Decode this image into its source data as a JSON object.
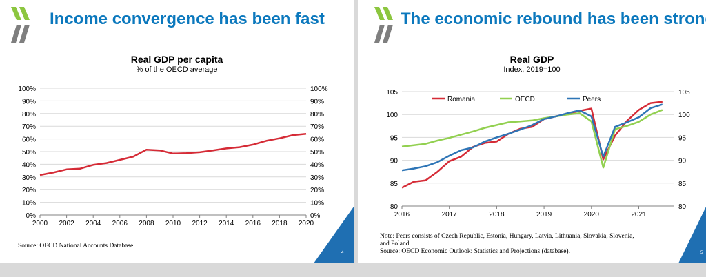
{
  "left_slide": {
    "title": "Income convergence has been fast",
    "page_number": "4",
    "source": "Source: OECD National Accounts Database."
  },
  "right_slide": {
    "title": "The economic rebound has been strong",
    "page_number": "5",
    "note_line1": "Note: Peers consists of Czech Republic, Estonia, Hungary, Latvia, Lithuania, Slovakia, Slovenia,",
    "note_line2": "and Poland.",
    "source": "Source: OECD Economic Outlook: Statistics and Projections (database)."
  },
  "colors": {
    "title_blue": "#0b78bd",
    "logo_green": "#8cc63f",
    "logo_gray": "#7f7f7f",
    "romania_red": "#d52b36",
    "oecd_green": "#92d050",
    "peers_blue": "#2e75b6",
    "corner_blue": "#1f6fb2"
  },
  "chart_data": [
    {
      "type": "line",
      "title": "Real GDP per capita",
      "subtitle": "% of the OECD average",
      "xlim": [
        2000,
        2020
      ],
      "ylim": [
        0,
        100
      ],
      "x_ticks": [
        "2000",
        "2002",
        "2004",
        "2006",
        "2008",
        "2010",
        "2012",
        "2014",
        "2016",
        "2018",
        "2020"
      ],
      "y_ticks": [
        "0%",
        "10%",
        "20%",
        "30%",
        "40%",
        "50%",
        "60%",
        "70%",
        "80%",
        "90%",
        "100%"
      ],
      "grid": true,
      "series": [
        {
          "color": "#d52b36",
          "x": [
            2000,
            2001,
            2002,
            2003,
            2004,
            2005,
            2006,
            2007,
            2008,
            2009,
            2010,
            2011,
            2012,
            2013,
            2014,
            2015,
            2016,
            2017,
            2018,
            2019,
            2020
          ],
          "values": [
            31.5,
            33.5,
            36,
            36.5,
            39.5,
            41,
            43.5,
            46,
            51.5,
            51,
            48.5,
            48.8,
            49.5,
            51,
            52.5,
            53.5,
            55.5,
            58.5,
            60.5,
            63,
            64
          ]
        }
      ]
    },
    {
      "type": "line",
      "title": "Real GDP",
      "subtitle": "Index, 2019=100",
      "xlim": [
        2016,
        2021.75
      ],
      "ylim": [
        80,
        105
      ],
      "x_ticks": [
        "2016",
        "2017",
        "2018",
        "2019",
        "2020",
        "2021"
      ],
      "y_ticks": [
        "80",
        "85",
        "90",
        "95",
        "100",
        "105"
      ],
      "grid": true,
      "legend": "top-left",
      "series": [
        {
          "name": "Romania",
          "color": "#d52b36",
          "x": [
            2016,
            2016.25,
            2016.5,
            2016.75,
            2017,
            2017.25,
            2017.5,
            2017.75,
            2018,
            2018.25,
            2018.5,
            2018.75,
            2019,
            2019.25,
            2019.5,
            2019.75,
            2020,
            2020.25,
            2020.5,
            2020.75,
            2021,
            2021.25,
            2021.5
          ],
          "values": [
            84,
            85.3,
            85.6,
            87.5,
            89.8,
            90.8,
            92.9,
            93.8,
            94.1,
            95.8,
            96.9,
            97.3,
            99,
            99.6,
            100.2,
            100.8,
            101.3,
            90.2,
            95.4,
            98.6,
            101,
            102.5,
            102.8
          ]
        },
        {
          "name": "OECD",
          "color": "#92d050",
          "x": [
            2016,
            2016.25,
            2016.5,
            2016.75,
            2017,
            2017.25,
            2017.5,
            2017.75,
            2018,
            2018.25,
            2018.5,
            2018.75,
            2019,
            2019.25,
            2019.5,
            2019.75,
            2020,
            2020.25,
            2020.5,
            2020.75,
            2021,
            2021.25,
            2021.5
          ],
          "values": [
            93,
            93.3,
            93.6,
            94.3,
            94.9,
            95.6,
            96.3,
            97.1,
            97.7,
            98.3,
            98.5,
            98.7,
            99.2,
            99.6,
            100,
            100.3,
            98.5,
            88.4,
            96.8,
            97.5,
            98.4,
            100,
            101
          ]
        },
        {
          "name": "Peers",
          "color": "#2e75b6",
          "x": [
            2016,
            2016.25,
            2016.5,
            2016.75,
            2017,
            2017.25,
            2017.5,
            2017.75,
            2018,
            2018.25,
            2018.5,
            2018.75,
            2019,
            2019.25,
            2019.5,
            2019.75,
            2020,
            2020.25,
            2020.5,
            2020.75,
            2021,
            2021.25,
            2021.5
          ],
          "values": [
            87.8,
            88.2,
            88.7,
            89.6,
            91,
            92.2,
            92.8,
            94.1,
            95,
            95.8,
            96.7,
            97.7,
            99,
            99.6,
            100.3,
            100.9,
            99.6,
            90.8,
            97.3,
            98.3,
            99.4,
            101.4,
            102.2
          ]
        }
      ]
    }
  ]
}
